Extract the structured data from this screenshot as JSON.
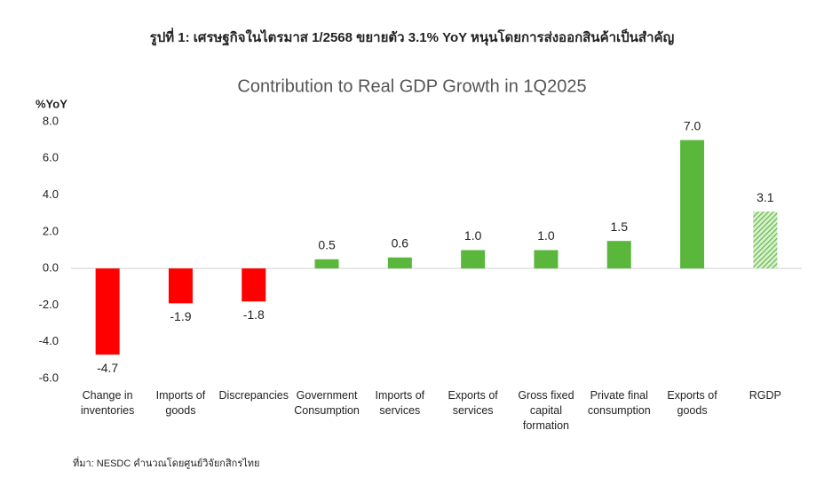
{
  "chart_data": {
    "type": "bar",
    "heading": "รูปที่ 1: เศรษฐกิจในไตรมาส 1/2568 ขยายตัว 3.1% YoY หนุนโดยการส่งออกสินค้าเป็นสำคัญ",
    "title": "Contribution to Real GDP Growth in 1Q2025",
    "y_label": "%YoY",
    "source": "ที่มา: NESDC คำนวณโดยศูนย์วิจัยกสิกรไทย",
    "categories": [
      "Change in inventories",
      "Imports of goods",
      "Discrepancies",
      "Government Consumption",
      "Imports of services",
      "Exports of services",
      "Gross fixed capital formation",
      "Private final consumption",
      "Exports of goods",
      "RGDP"
    ],
    "values": [
      -4.7,
      -1.9,
      -1.8,
      0.5,
      0.6,
      1.0,
      1.0,
      1.5,
      7.0,
      3.1
    ],
    "value_labels": [
      "-4.7",
      "-1.9",
      "-1.8",
      "0.5",
      "0.6",
      "1.0",
      "1.0",
      "1.5",
      "7.0",
      "3.1"
    ],
    "colors": [
      "#ff0000",
      "#ff0000",
      "#ff0000",
      "#5bb73c",
      "#5bb73c",
      "#5bb73c",
      "#5bb73c",
      "#5bb73c",
      "#5bb73c",
      "#5bb73c"
    ],
    "fill_styles": [
      "solid",
      "solid",
      "solid",
      "solid",
      "solid",
      "solid",
      "solid",
      "solid",
      "solid",
      "hatch"
    ],
    "ylim": [
      -6,
      8
    ],
    "yticks": [
      {
        "value": -6,
        "label": "-6.0"
      },
      {
        "value": -4,
        "label": "-4.0"
      },
      {
        "value": -2,
        "label": "-2.0"
      },
      {
        "value": 0,
        "label": "0.0"
      },
      {
        "value": 2,
        "label": "2.0"
      },
      {
        "value": 4,
        "label": "4.0"
      },
      {
        "value": 6,
        "label": "6.0"
      },
      {
        "value": 8,
        "label": "8.0"
      }
    ],
    "grid": false
  }
}
